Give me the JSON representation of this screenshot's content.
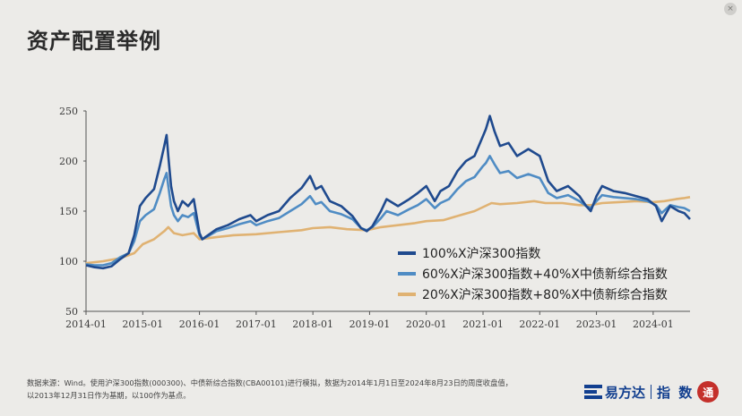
{
  "page": {
    "title": "资产配置举例",
    "close_icon": "×",
    "footnote_line1": "数据来源：Wind。使用沪深300指数(000300)、中债新综合指数(CBA00101)进行模拟，数据为2014年1月1日至2024年8月23日的周度收盘值，",
    "footnote_line2": "以2013年12月31日作为基期，以100作为基点。",
    "logo_brand": "易方达",
    "logo_sub": "指 数",
    "logo_badge_text": "通"
  },
  "chart_data": {
    "type": "line",
    "title": "",
    "xlabel": "",
    "ylabel": "",
    "x_ticks": [
      "2014-01",
      "2015-01",
      "2016-01",
      "2017-01",
      "2018-01",
      "2019-01",
      "2020-01",
      "2021-01",
      "2022-01",
      "2023-01",
      "2024-01"
    ],
    "y_ticks": [
      50,
      100,
      150,
      200,
      250
    ],
    "ylim": [
      50,
      250
    ],
    "xlim": [
      2014.0,
      2024.65
    ],
    "grid": false,
    "legend_position": "lower-right",
    "series": [
      {
        "name": "100%X沪深300指数",
        "color": "#1f4a8e",
        "x": [
          2014.0,
          2014.15,
          2014.3,
          2014.45,
          2014.6,
          2014.75,
          2014.85,
          2014.95,
          2015.05,
          2015.2,
          2015.3,
          2015.38,
          2015.42,
          2015.45,
          2015.5,
          2015.55,
          2015.62,
          2015.7,
          2015.8,
          2015.9,
          2016.0,
          2016.05,
          2016.15,
          2016.3,
          2016.5,
          2016.7,
          2016.9,
          2017.0,
          2017.2,
          2017.4,
          2017.6,
          2017.8,
          2017.95,
          2018.05,
          2018.15,
          2018.3,
          2018.5,
          2018.7,
          2018.85,
          2018.95,
          2019.05,
          2019.2,
          2019.3,
          2019.5,
          2019.7,
          2019.85,
          2020.0,
          2020.15,
          2020.25,
          2020.4,
          2020.55,
          2020.7,
          2020.85,
          2021.0,
          2021.05,
          2021.12,
          2021.2,
          2021.3,
          2021.45,
          2021.6,
          2021.8,
          2022.0,
          2022.15,
          2022.3,
          2022.5,
          2022.7,
          2022.82,
          2022.9,
          2023.0,
          2023.1,
          2023.3,
          2023.5,
          2023.7,
          2023.9,
          2024.05,
          2024.15,
          2024.3,
          2024.45,
          2024.55,
          2024.65
        ],
        "values": [
          96,
          94,
          93,
          95,
          102,
          108,
          126,
          155,
          163,
          172,
          195,
          215,
          226,
          205,
          175,
          160,
          150,
          160,
          155,
          162,
          128,
          122,
          126,
          132,
          136,
          142,
          146,
          140,
          146,
          150,
          163,
          173,
          185,
          172,
          175,
          160,
          155,
          145,
          133,
          130,
          135,
          150,
          162,
          155,
          162,
          168,
          175,
          160,
          170,
          175,
          190,
          200,
          205,
          225,
          232,
          245,
          230,
          215,
          218,
          205,
          212,
          205,
          180,
          170,
          175,
          165,
          155,
          150,
          165,
          175,
          170,
          168,
          165,
          162,
          155,
          140,
          155,
          150,
          148,
          142
        ]
      },
      {
        "name": "60%X沪深300指数+40%X中债新综合指数",
        "color": "#4f8cc4",
        "x": [
          2014.0,
          2014.15,
          2014.3,
          2014.45,
          2014.6,
          2014.75,
          2014.85,
          2014.95,
          2015.05,
          2015.2,
          2015.3,
          2015.38,
          2015.42,
          2015.45,
          2015.5,
          2015.55,
          2015.62,
          2015.7,
          2015.8,
          2015.9,
          2016.0,
          2016.05,
          2016.15,
          2016.3,
          2016.5,
          2016.7,
          2016.9,
          2017.0,
          2017.2,
          2017.4,
          2017.6,
          2017.8,
          2017.95,
          2018.05,
          2018.15,
          2018.3,
          2018.5,
          2018.7,
          2018.85,
          2018.95,
          2019.05,
          2019.2,
          2019.3,
          2019.5,
          2019.7,
          2019.85,
          2020.0,
          2020.15,
          2020.25,
          2020.4,
          2020.55,
          2020.7,
          2020.85,
          2021.0,
          2021.05,
          2021.12,
          2021.2,
          2021.3,
          2021.45,
          2021.6,
          2021.8,
          2022.0,
          2022.15,
          2022.3,
          2022.5,
          2022.7,
          2022.82,
          2022.9,
          2023.0,
          2023.1,
          2023.3,
          2023.5,
          2023.7,
          2023.9,
          2024.05,
          2024.15,
          2024.3,
          2024.45,
          2024.55,
          2024.65
        ],
        "values": [
          97,
          96,
          96,
          98,
          104,
          108,
          120,
          140,
          146,
          152,
          168,
          182,
          188,
          175,
          155,
          146,
          140,
          146,
          144,
          148,
          126,
          122,
          125,
          130,
          133,
          137,
          140,
          136,
          140,
          143,
          150,
          157,
          165,
          157,
          159,
          150,
          147,
          142,
          133,
          131,
          134,
          143,
          150,
          146,
          152,
          156,
          162,
          153,
          158,
          162,
          172,
          180,
          184,
          195,
          198,
          205,
          197,
          188,
          190,
          183,
          187,
          183,
          168,
          163,
          166,
          160,
          155,
          153,
          160,
          166,
          164,
          163,
          162,
          160,
          156,
          148,
          156,
          154,
          153,
          150
        ]
      },
      {
        "name": "20%X沪深300指数+80%X中债新综合指数",
        "color": "#e0b272",
        "x": [
          2014.0,
          2014.3,
          2014.6,
          2014.85,
          2015.0,
          2015.2,
          2015.38,
          2015.45,
          2015.55,
          2015.7,
          2015.9,
          2016.0,
          2016.3,
          2016.6,
          2017.0,
          2017.4,
          2017.8,
          2018.0,
          2018.3,
          2018.6,
          2018.95,
          2019.2,
          2019.5,
          2019.8,
          2020.0,
          2020.3,
          2020.6,
          2020.85,
          2021.0,
          2021.15,
          2021.3,
          2021.6,
          2021.9,
          2022.1,
          2022.4,
          2022.7,
          2022.9,
          2023.1,
          2023.4,
          2023.7,
          2024.0,
          2024.2,
          2024.4,
          2024.55,
          2024.65
        ],
        "values": [
          98,
          100,
          103,
          108,
          117,
          122,
          130,
          134,
          128,
          126,
          128,
          122,
          124,
          126,
          127,
          129,
          131,
          133,
          134,
          132,
          131,
          134,
          136,
          138,
          140,
          141,
          146,
          150,
          154,
          158,
          157,
          158,
          160,
          158,
          158,
          156,
          156,
          158,
          159,
          160,
          159,
          160,
          162,
          163,
          164
        ]
      }
    ]
  }
}
